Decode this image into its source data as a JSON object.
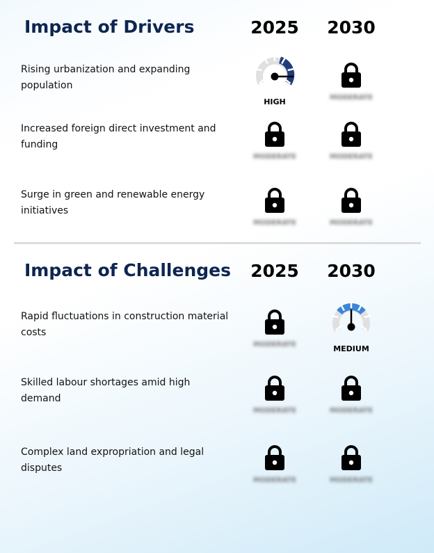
{
  "drivers": {
    "title": "Impact of Drivers",
    "year_a": "2025",
    "year_b": "2030",
    "rows": [
      {
        "label": "Rising urbanization and expanding population",
        "a": {
          "type": "gauge",
          "level": "HIGH",
          "color": "#1f3d7a"
        },
        "b": {
          "type": "locked",
          "hidden": "MODERATE"
        }
      },
      {
        "label": "Increased foreign direct investment and funding",
        "a": {
          "type": "locked",
          "hidden": "MODERATE"
        },
        "b": {
          "type": "locked",
          "hidden": "MODERATE"
        }
      },
      {
        "label": "Surge in green and renewable energy initiatives",
        "a": {
          "type": "locked",
          "hidden": "MODERATE"
        },
        "b": {
          "type": "locked",
          "hidden": "MODERATE"
        }
      }
    ]
  },
  "challenges": {
    "title": "Impact of Challenges",
    "year_a": "2025",
    "year_b": "2030",
    "rows": [
      {
        "label": "Rapid fluctuations in construction material costs",
        "a": {
          "type": "locked",
          "hidden": "MODERATE"
        },
        "b": {
          "type": "gauge",
          "level": "MEDIUM",
          "color": "#3a86d8"
        }
      },
      {
        "label": "Skilled labour shortages amid high demand",
        "a": {
          "type": "locked",
          "hidden": "MODERATE"
        },
        "b": {
          "type": "locked",
          "hidden": "MODERATE"
        }
      },
      {
        "label": "Complex land expropriation and legal disputes",
        "a": {
          "type": "locked",
          "hidden": "MODERATE"
        },
        "b": {
          "type": "locked",
          "hidden": "MODERATE"
        }
      }
    ]
  },
  "icons": {
    "lock": "lock-icon",
    "gauge": "gauge-icon"
  },
  "colors": {
    "title": "#0d2550",
    "gauge_track": "#e0e0e0"
  }
}
